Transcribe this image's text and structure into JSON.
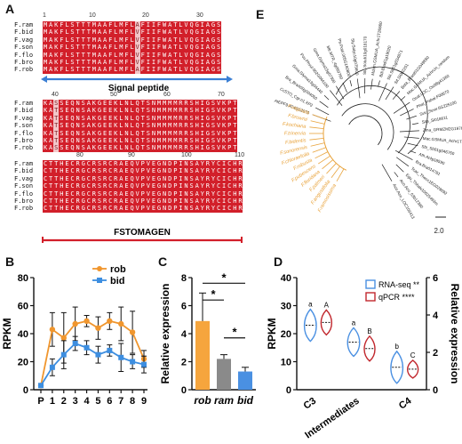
{
  "figure": {
    "panels": {
      "a": "A",
      "b": "B",
      "c": "C",
      "d": "D",
      "e": "E"
    }
  },
  "panel_a": {
    "species": [
      "F.ram",
      "F.bid",
      "F.vag",
      "F.son",
      "F.flo",
      "F.bro",
      "F.rob"
    ],
    "ruler1": [
      "1",
      "10",
      "20",
      "30"
    ],
    "ruler2": [
      "40",
      "50",
      "60",
      "70"
    ],
    "ruler3": [
      "80",
      "90",
      "100",
      "110"
    ],
    "block1": [
      "MAKFLSTTTMAAFLMFLAFIIFWATLVQGIAGS",
      "MAKFLSTTTMAAFLMFLVFIIFWATLVQGIAGS",
      "MAKFLSTTTMAAFLMFLVFIIFWATLVQGIAGS",
      "MAKFLSTTTMAAFLMFLVFIIFWATLVQGIAGS",
      "MAKFLSTTTMAAFLMFLVFIIFWATLVQGIAGS",
      "MAKFLSTTTMAAFLMFLVFIIFWATLVQGIAGS",
      "MAKFLSTTTMAAFLMFLAFIIFWATLVQGIAGS"
    ],
    "block2": [
      "KASSEQNSAKGEEKLNLQTSNMMMMRRSHIGSVKPT",
      "KATSEQNSAKGEEKLNLQTSNMMMMRRSHIGSVKPT",
      "KATSEQNSAKGEEKLNLQTSNMMMMRRSHIGSVKPT",
      "KATSEQNSAKGEEKLNLQTSNMMMMRRSHIGSVKPT",
      "KATSEQNSAKGEEKLNLQTSNMMMMRRSHIGSVKPT",
      "KATSEQNSAKGEEKLNLQTSNMMMMRRSHIGSVKPT",
      "KASSEQNSAKGEEKLNLQTSNMMMMRRSHIGSVKPT"
    ],
    "block3": [
      "CTTHECRGCRSRCRAEQVPVEGNDPINSAYRYCICHR",
      "CTTHECRGCRSRCRAEQVPVEGNDPINSAYRYCICHR",
      "CTTHECRGCRSRCRAEQVPVEGNDPINSAYRYCICHR",
      "CTTHECRGCRSRCRAEQVPVEGNDPINSAYRYCICHR",
      "CTTHECRGCRSRCRAEQVPVEGNDPINSAYRYCICHR",
      "CTTHECRGCRSRCRAEQVPVEGNDPINSAYRYCICHR",
      "CTTHECRGCRSRCRAEQVPVEGNDPINSAYRYCICHR"
    ],
    "signal_peptide_label": "Signal peptide",
    "fstomagen_label": "FSTOMAGEN",
    "colors": {
      "conserved": "#d21f2a",
      "signal": "#3b7fd4",
      "mature": "#d21f2a"
    }
  },
  "panel_e": {
    "orange_taxa": [
      "F.ramosissima",
      "F.angustifolia",
      "F.palmeri",
      "F.floridana",
      "F.pubescens",
      "F.robusta",
      "F.chloraefolia",
      "F.sonorensis",
      "F.bidentis",
      "F.trinervia",
      "F.kochiana",
      "F.brownii",
      "F.vaginata"
    ],
    "black_taxa": [
      "AtEPF9.AT4G12970",
      "CcSTO_Cgr.n1.XP2",
      "Bra_BraA09g004050",
      "Gma.Glyma13g04440",
      "Pvu.Phvul.002G044100",
      "Gma.Glyma15g07300",
      "Mtr.MTR_4g069760",
      "Ptr.Potri.005G160800",
      "Sly.Solyc10g075600",
      "Stu.Sotub10g018170",
      "Mdom.GSMUA_Achr1T26860",
      "Bdi.Bradi1g19020",
      "Sbi.Sb01g034871",
      "Sit.Si002251",
      "Bsta_Brast01G049850",
      "Mac.GSMUA_AchrUn_random",
      "Osat.LOC_Os08g41360",
      "Phal_Pahal.F00670",
      "Svir_Sevir.6G225100",
      "Sita_Si018611",
      "Zma_GRMZM2G197690",
      "Mac.GSMUA_Achr1T23230",
      "Sbi_Sb01g046760",
      "Ath.At4g18590",
      "Bra.Bra014781",
      "Tcac_Thecc1EG029092",
      "Egu_Thhalv10025493m",
      "Aco.Aco_03b12360",
      "Aco.Aco_LOC106413"
    ],
    "scale_label": "2.0",
    "orange_color": "#e8a23a"
  },
  "chart_data": [
    {
      "type": "line",
      "panel": "B",
      "ylabel": "RPKM",
      "x": [
        "P",
        "1",
        "2",
        "3",
        "4",
        "5",
        "6",
        "7",
        "8",
        "9"
      ],
      "ylim": [
        0,
        80
      ],
      "yticks": [
        0,
        20,
        40,
        60,
        80
      ],
      "series": [
        {
          "name": "rob",
          "color": "#f0962e",
          "values": [
            3,
            43,
            37,
            47,
            49,
            44,
            49,
            47,
            41,
            22
          ],
          "err": [
            0,
            12,
            18,
            12,
            4,
            8,
            6,
            12,
            15,
            6
          ]
        },
        {
          "name": "bid",
          "color": "#3d8ee0",
          "values": [
            3,
            16,
            25,
            33,
            30,
            25,
            28,
            23,
            20,
            18
          ],
          "err": [
            0,
            6,
            10,
            5,
            5,
            6,
            4,
            10,
            5,
            6
          ]
        }
      ]
    },
    {
      "type": "bar",
      "panel": "C",
      "ylabel": "Relative expression",
      "categories": [
        "rob",
        "ram",
        "bid"
      ],
      "values": [
        4.9,
        2.2,
        1.3
      ],
      "err": [
        2.0,
        0.3,
        0.3
      ],
      "colors": [
        "#f6a53d",
        "#8a8a8a",
        "#4a90e2"
      ],
      "ylim": [
        0,
        8
      ],
      "yticks": [
        0,
        2,
        4,
        6,
        8
      ],
      "significance": [
        "*",
        "*",
        "*"
      ]
    },
    {
      "type": "violin",
      "panel": "D",
      "ylabel_left": "RPKM",
      "ylabel_right": "Relative expression",
      "categories": [
        "C3",
        "Intermediates",
        "C4"
      ],
      "ylim_left": [
        0,
        40
      ],
      "yticks_left": [
        0,
        10,
        20,
        30,
        40
      ],
      "ylim_right": [
        0,
        6
      ],
      "yticks_right": [
        0,
        2,
        4,
        6
      ],
      "series": [
        {
          "name": "RNA-seq",
          "sig": "**",
          "color": "#4a90e2",
          "medians": [
            23,
            17,
            8
          ],
          "letters": [
            "a",
            "a",
            "b"
          ]
        },
        {
          "name": "qPCR",
          "sig": "****",
          "color": "#c1272d",
          "medians": [
            3.6,
            2.2,
            1.1
          ],
          "letters": [
            "A",
            "B",
            "C"
          ]
        }
      ]
    }
  ]
}
